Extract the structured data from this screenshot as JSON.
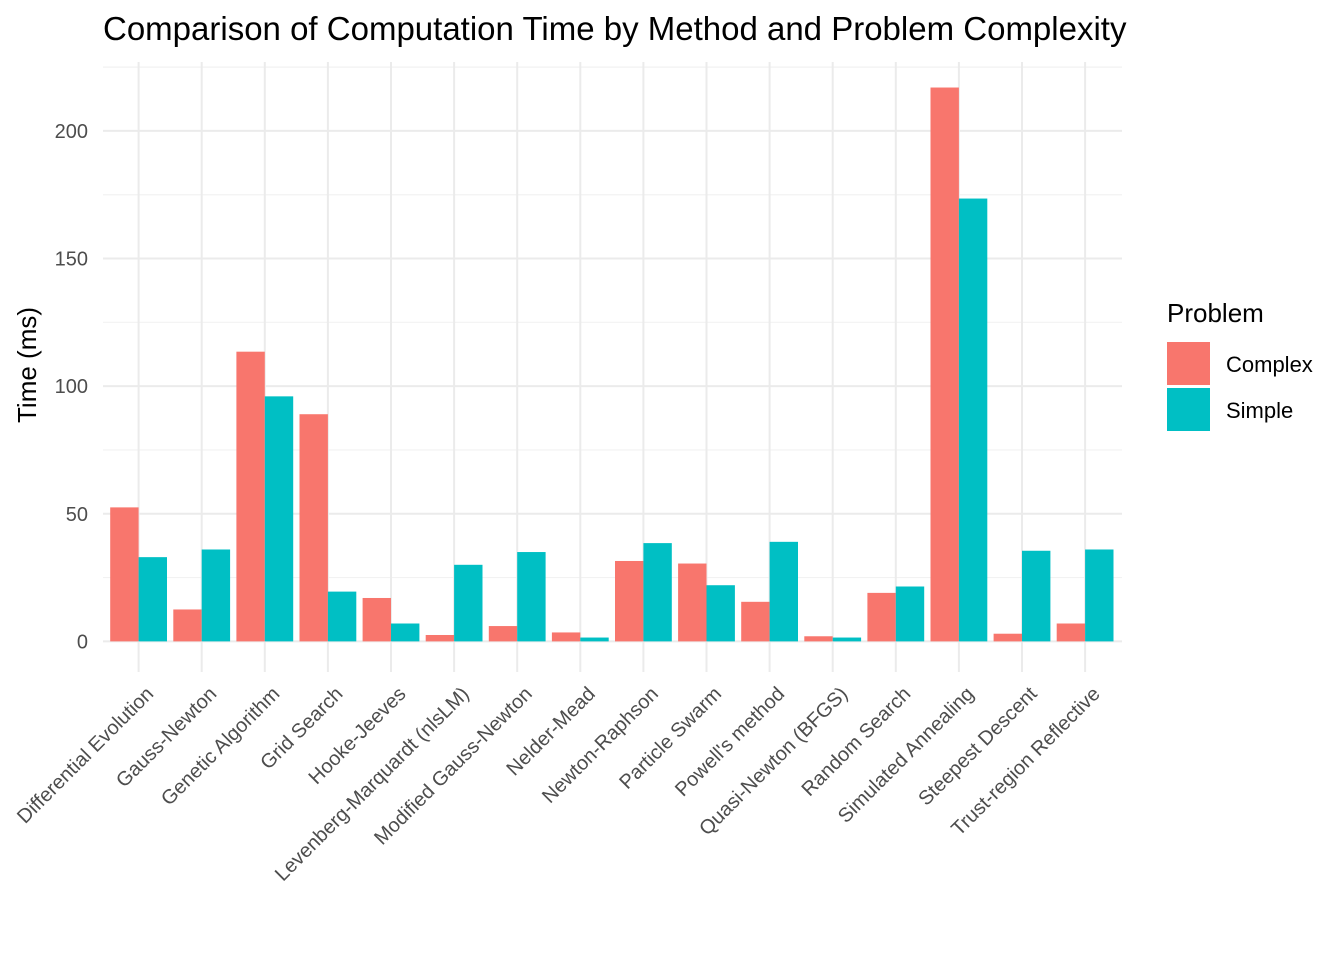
{
  "chart_data": {
    "type": "bar",
    "title": "Comparison of Computation Time by Method and Problem Complexity",
    "xlabel": "",
    "ylabel": "Time (ms)",
    "ylim": [
      -12,
      227
    ],
    "yticks": [
      0,
      50,
      100,
      150,
      200
    ],
    "grid": true,
    "legend": {
      "title": "Problem",
      "placement": "right"
    },
    "categories": [
      "Differential Evolution",
      "Gauss-Newton",
      "Genetic Algorithm",
      "Grid Search",
      "Hooke-Jeeves",
      "Levenberg-Marquardt (nlsLM)",
      "Modified Gauss-Newton",
      "Nelder-Mead",
      "Newton-Raphson",
      "Particle Swarm",
      "Powell's method",
      "Quasi-Newton (BFGS)",
      "Random Search",
      "Simulated Annealing",
      "Steepest Descent",
      "Trust-region Reflective"
    ],
    "series": [
      {
        "name": "Complex",
        "color": "#F8766D",
        "values": [
          52.5,
          12.5,
          113.5,
          89,
          17,
          2.5,
          6,
          3.5,
          31.5,
          30.5,
          15.5,
          2,
          19,
          217,
          3,
          7
        ]
      },
      {
        "name": "Simple",
        "color": "#00BFC4",
        "values": [
          33,
          36,
          96,
          19.5,
          7,
          30,
          35,
          1.5,
          38.5,
          22,
          39,
          1.5,
          21.5,
          173.5,
          35.5,
          36
        ]
      }
    ]
  }
}
